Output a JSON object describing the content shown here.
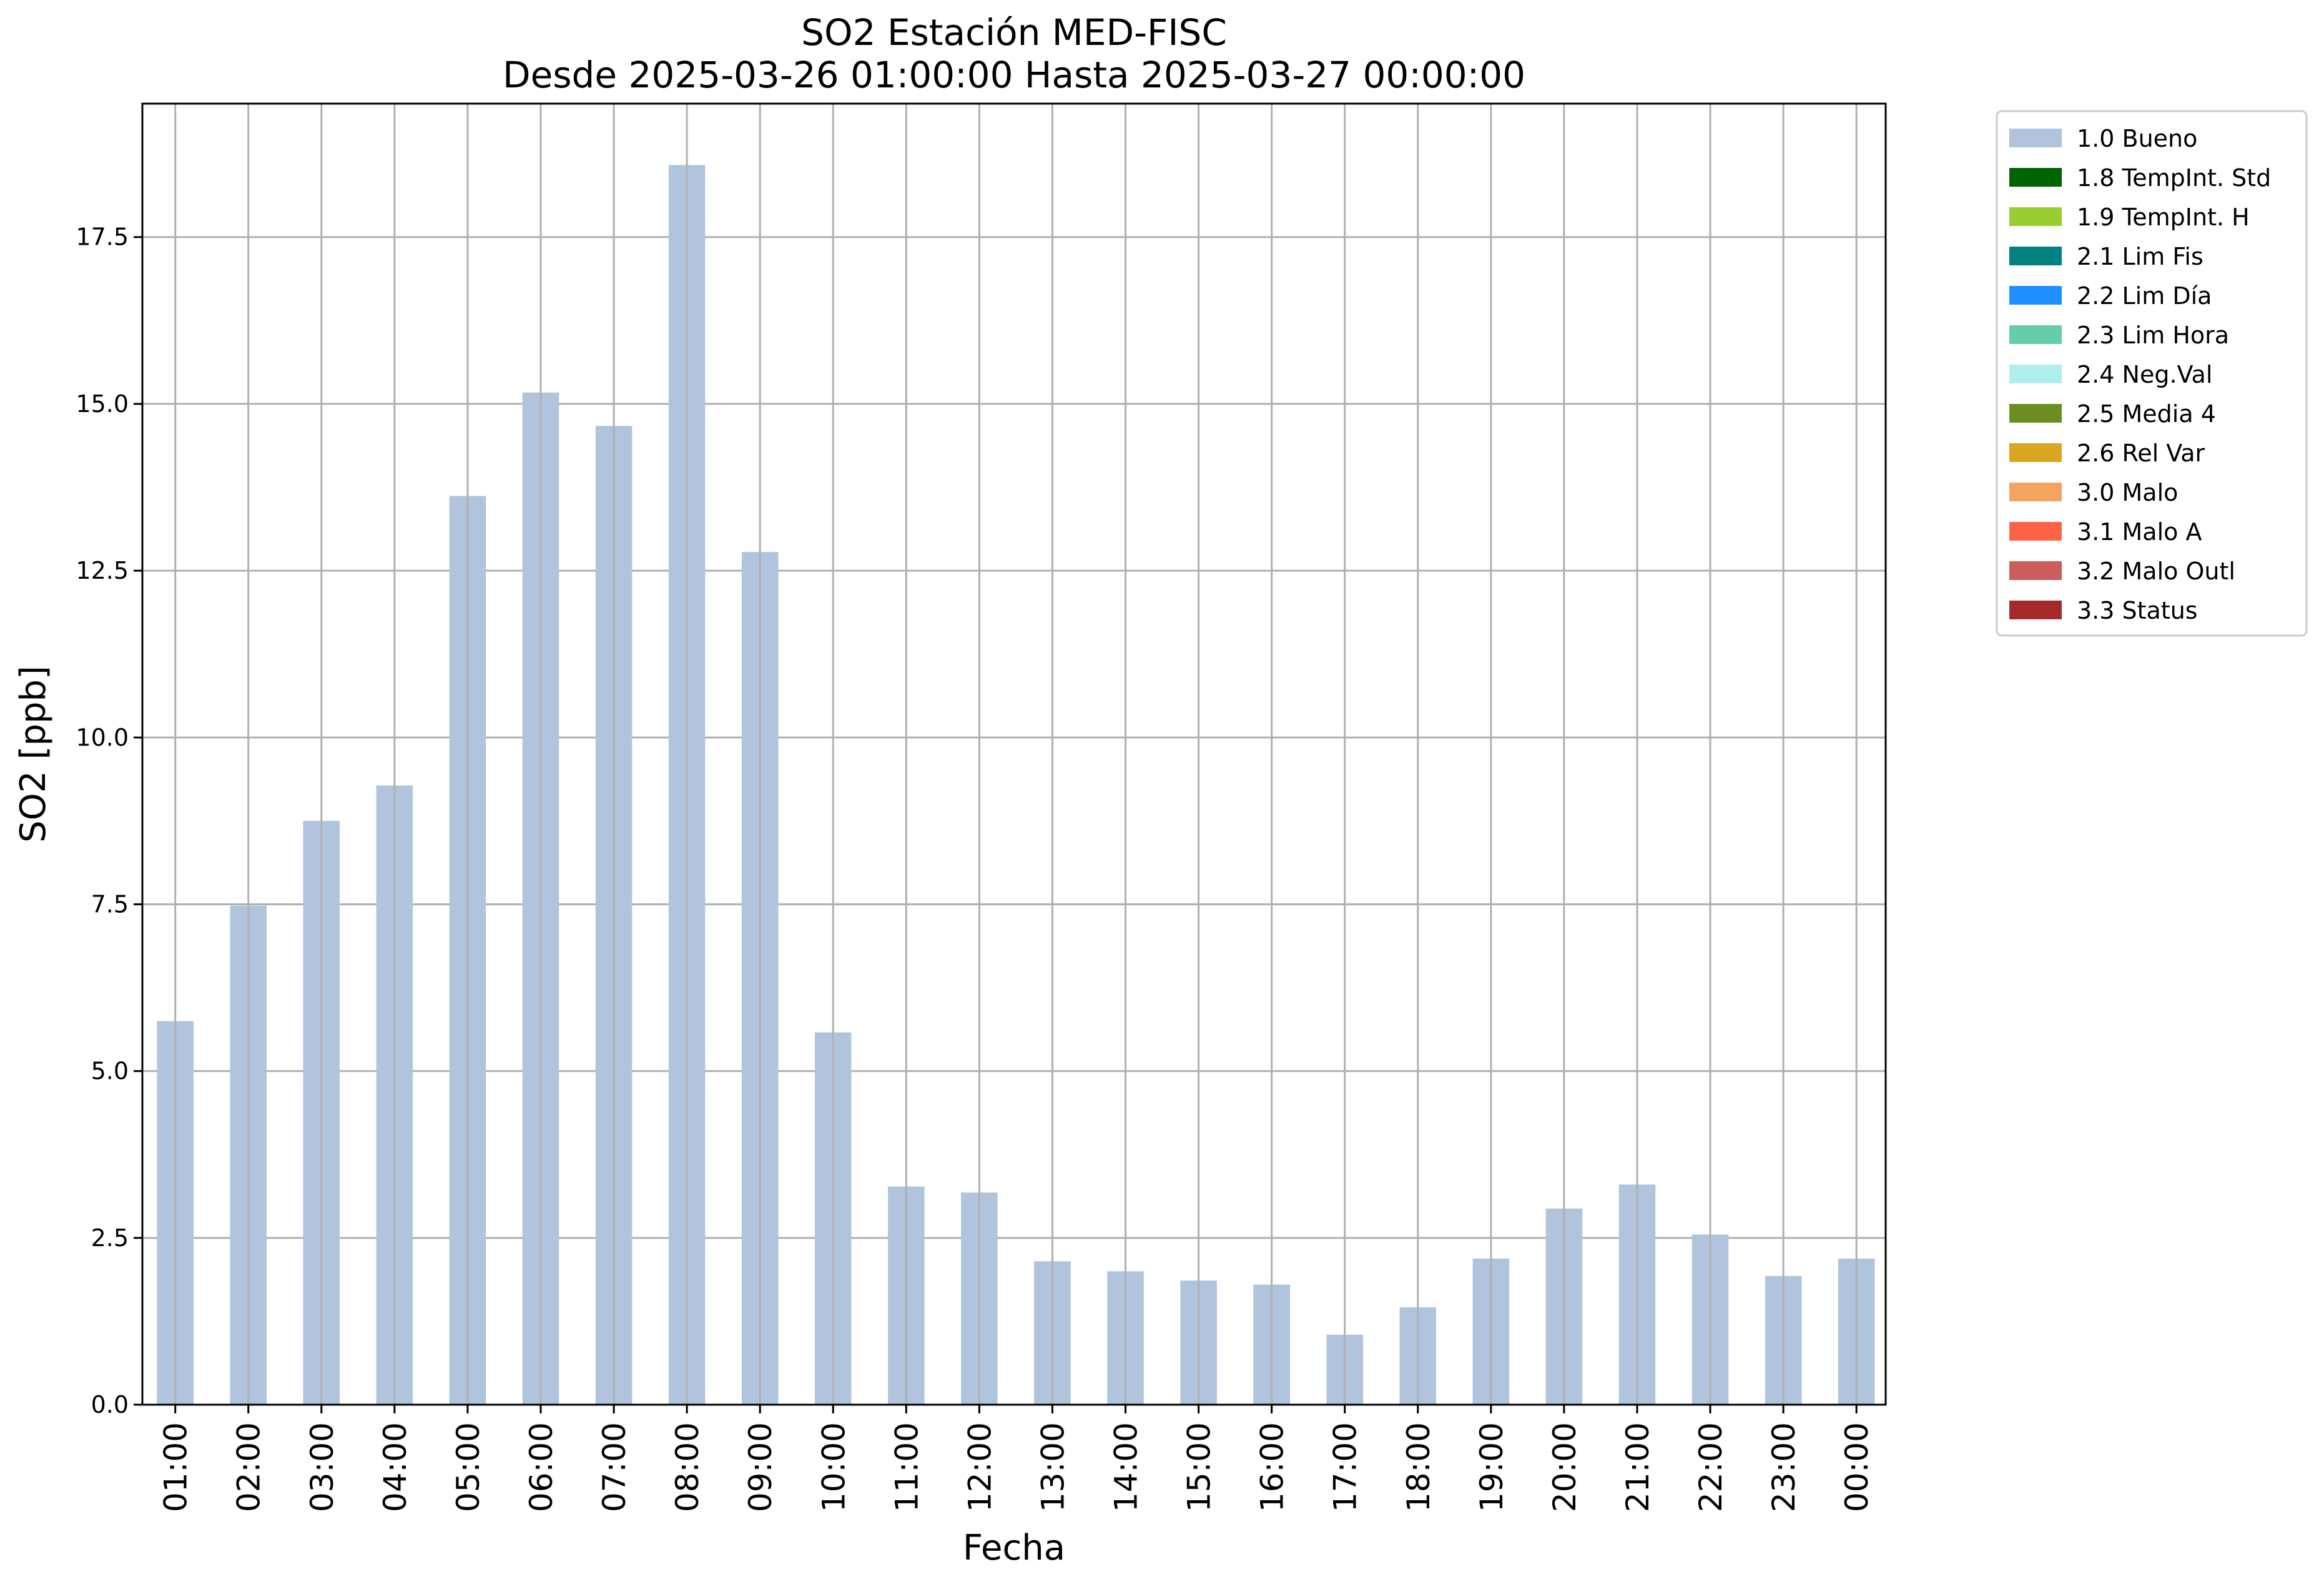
{
  "chart_data": {
    "type": "bar",
    "title": "SO2 Estación MED-FISC",
    "subtitle": "Desde 2025-03-26 01:00:00 Hasta 2025-03-27 00:00:00",
    "xlabel": "Fecha",
    "ylabel": "SO2 [ppb]",
    "ylim": [
      0,
      19.5
    ],
    "yticks": [
      0.0,
      2.5,
      5.0,
      7.5,
      10.0,
      12.5,
      15.0,
      17.5
    ],
    "ytick_labels": [
      "0.0",
      "2.5",
      "5.0",
      "7.5",
      "10.0",
      "12.5",
      "15.0",
      "17.5"
    ],
    "grid": true,
    "legend_position": "outside-top-right",
    "categories": [
      "01:00",
      "02:00",
      "03:00",
      "04:00",
      "05:00",
      "06:00",
      "07:00",
      "08:00",
      "09:00",
      "10:00",
      "11:00",
      "12:00",
      "13:00",
      "14:00",
      "15:00",
      "16:00",
      "17:00",
      "18:00",
      "19:00",
      "20:00",
      "21:00",
      "22:00",
      "23:00",
      "00:00"
    ],
    "series": [
      {
        "name": "1.0 Bueno",
        "color": "#b0c4de",
        "values": [
          5.75,
          7.48,
          8.75,
          9.28,
          13.62,
          15.17,
          14.67,
          18.58,
          12.78,
          5.58,
          3.27,
          3.18,
          2.15,
          2.0,
          1.86,
          1.8,
          1.05,
          1.46,
          2.19,
          2.94,
          3.3,
          2.55,
          1.93,
          2.19
        ]
      }
    ],
    "legend": [
      {
        "label": "1.0 Bueno",
        "color": "#b0c4de"
      },
      {
        "label": "1.8 TempInt. Std",
        "color": "#006400"
      },
      {
        "label": "1.9 TempInt. H",
        "color": "#9acd32"
      },
      {
        "label": "2.1 Lim Fis",
        "color": "#008080"
      },
      {
        "label": "2.2 Lim Día",
        "color": "#1e90ff"
      },
      {
        "label": "2.3 Lim Hora",
        "color": "#66cdaa"
      },
      {
        "label": "2.4 Neg.Val",
        "color": "#afeeee"
      },
      {
        "label": "2.5 Media 4",
        "color": "#6b8e23"
      },
      {
        "label": "2.6 Rel Var",
        "color": "#daa520"
      },
      {
        "label": "3.0 Malo",
        "color": "#f4a460"
      },
      {
        "label": "3.1 Malo A",
        "color": "#ff6347"
      },
      {
        "label": "3.2 Malo Outl",
        "color": "#cd5c5c"
      },
      {
        "label": "3.3 Status",
        "color": "#a52a2a"
      }
    ]
  }
}
